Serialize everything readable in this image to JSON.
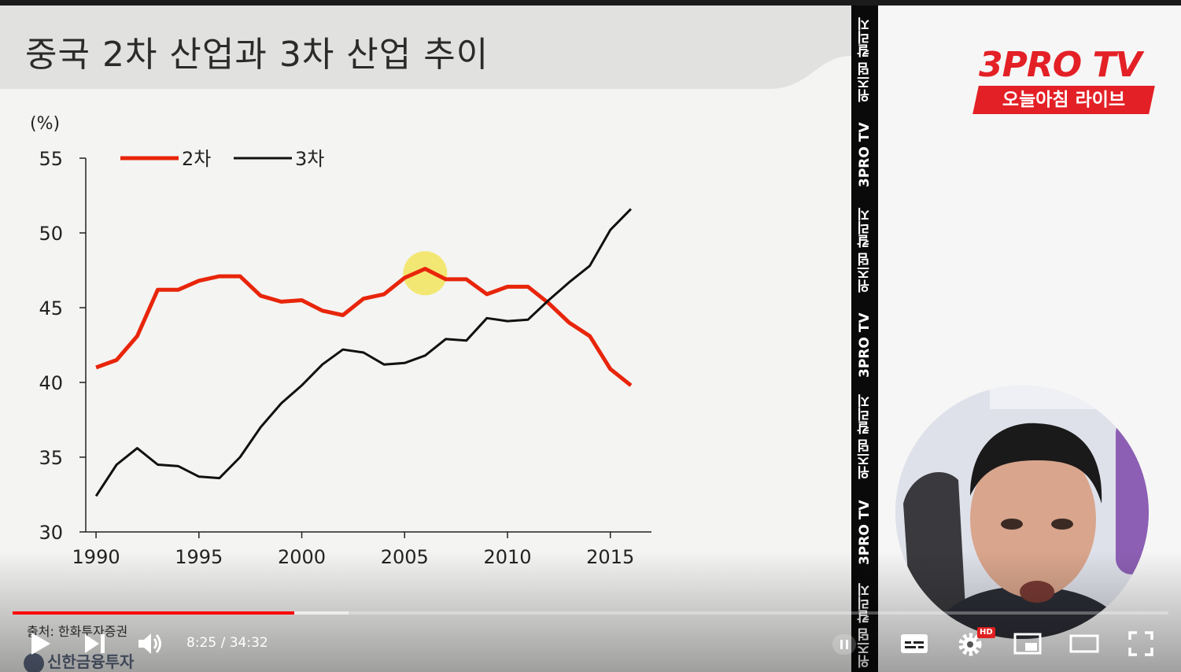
{
  "slide": {
    "title": "중국 2차 산업과 3차 산업 추이",
    "source": "출처: 한화투자증권",
    "bottom_logo": "신한금융투자"
  },
  "chart_data": {
    "type": "line",
    "ylabel": "(%)",
    "ylim": [
      30,
      55
    ],
    "yticks": [
      55,
      50,
      45,
      40,
      35,
      30
    ],
    "xlim": [
      1989.5,
      2017
    ],
    "xticks": [
      1990,
      1995,
      2000,
      2005,
      2010,
      2015
    ],
    "legend_position": "top-left",
    "series": [
      {
        "name": "2차",
        "color": "#e8250a",
        "x": [
          1990,
          1991,
          1992,
          1993,
          1994,
          1995,
          1996,
          1997,
          1998,
          1999,
          2000,
          2001,
          2002,
          2003,
          2004,
          2005,
          2006,
          2007,
          2008,
          2009,
          2010,
          2011,
          2012,
          2013,
          2014,
          2015,
          2016
        ],
        "values": [
          41.0,
          41.5,
          43.1,
          46.2,
          46.2,
          46.8,
          47.1,
          47.1,
          45.8,
          45.4,
          45.5,
          44.8,
          44.5,
          45.6,
          45.9,
          47.0,
          47.6,
          46.9,
          46.9,
          45.9,
          46.4,
          46.4,
          45.3,
          44.0,
          43.1,
          40.9,
          39.8
        ]
      },
      {
        "name": "3차",
        "color": "#111111",
        "x": [
          1990,
          1991,
          1992,
          1993,
          1994,
          1995,
          1996,
          1997,
          1998,
          1999,
          2000,
          2001,
          2002,
          2003,
          2004,
          2005,
          2006,
          2007,
          2008,
          2009,
          2010,
          2011,
          2012,
          2013,
          2014,
          2015,
          2016
        ],
        "values": [
          32.4,
          34.5,
          35.6,
          34.5,
          34.4,
          33.7,
          33.6,
          35.0,
          37.0,
          38.6,
          39.8,
          41.2,
          42.2,
          42.0,
          41.2,
          41.3,
          41.8,
          42.9,
          42.8,
          44.3,
          44.1,
          44.2,
          45.5,
          46.7,
          47.8,
          50.2,
          51.6
        ]
      }
    ],
    "highlight": {
      "x": 2006,
      "y": 47.3,
      "color": "#f3e34a"
    }
  },
  "side_strip": {
    "items": [
      "위즈덤 칼리지",
      "3PRO TV",
      "위즈덤 칼리지",
      "3PRO TV",
      "위즈덤 칼리지",
      "3PRO TV",
      "위즈덤 칼리지"
    ]
  },
  "brand": {
    "name": "3PRO TV",
    "program": "오늘아침 라이브",
    "color": "#e32026"
  },
  "player": {
    "time": "8:25 / 34:32",
    "played_fraction": 0.244,
    "buffered_fraction": 0.291,
    "hd_badge": "HD",
    "progress_color": "#ff0000",
    "icons": [
      "play-icon",
      "next-icon",
      "volume-icon",
      "autoplay-pause-icon",
      "subtitles-icon",
      "settings-icon",
      "miniplayer-icon",
      "theater-icon",
      "fullscreen-icon"
    ]
  }
}
